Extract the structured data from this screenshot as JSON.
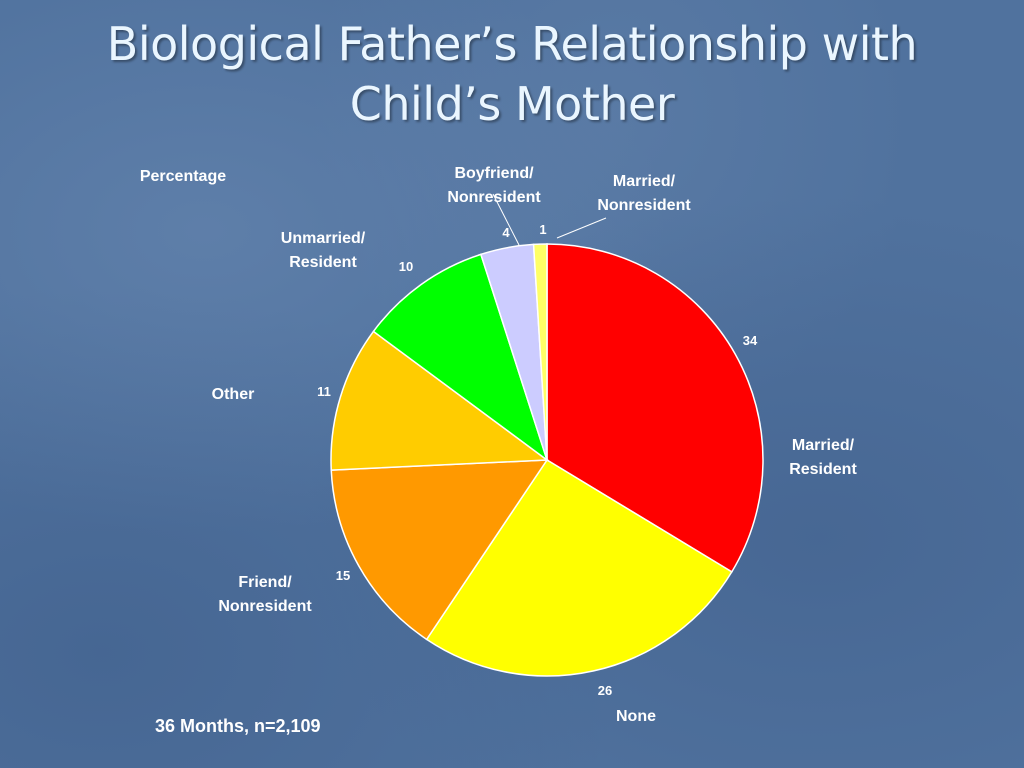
{
  "slide": {
    "title_line1": "Biological Father’s Relationship with",
    "title_line2": "Child’s Mother",
    "footnote": "36 Months, n=2,109"
  },
  "chart_data": {
    "type": "pie",
    "subtitle": "Percentage",
    "slices": [
      {
        "label_lines": [
          "Married/",
          "Resident"
        ],
        "value": 34,
        "color": "#ff0000"
      },
      {
        "label_lines": [
          "None"
        ],
        "value": 26,
        "color": "#ffff00"
      },
      {
        "label_lines": [
          "Friend/",
          "Nonresident"
        ],
        "value": 15,
        "color": "#ff9900"
      },
      {
        "label_lines": [
          "Other"
        ],
        "value": 11,
        "color": "#ffcc00"
      },
      {
        "label_lines": [
          "Unmarried/",
          "Resident"
        ],
        "value": 10,
        "color": "#00ff00"
      },
      {
        "label_lines": [
          "Boyfriend/",
          "Nonresident"
        ],
        "value": 4,
        "color": "#ccccff"
      },
      {
        "label_lines": [
          "Married/",
          "Nonresident"
        ],
        "value": 1,
        "color": "#ffff66"
      }
    ]
  }
}
